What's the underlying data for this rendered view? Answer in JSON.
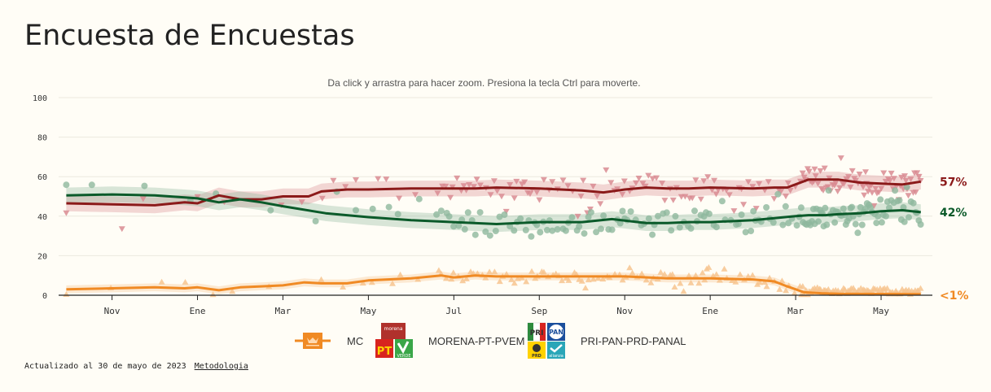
{
  "header": {
    "title": "Encuesta de Encuestas",
    "hint": "Da click y arrastra para hacer zoom. Presiona la tecla Ctrl para moverte."
  },
  "footer": {
    "updated": "Actualizado al 30 de mayo de 2023",
    "methodology_link": "Metodologia"
  },
  "legend": [
    {
      "label": "MC",
      "icon": "mc-logo-icon",
      "color": "#f08a24"
    },
    {
      "label": "MORENA-PT-PVEM",
      "icon": "morena-pt-pvem-logos-icon",
      "color": "#8b1a1a"
    },
    {
      "label": "PRI-PAN-PRD-PANAL",
      "icon": "pri-pan-prd-panal-logos-icon",
      "color": "#0b5a2a"
    }
  ],
  "chart_data": {
    "type": "line",
    "title": "Encuesta de Encuestas",
    "xlabel": "",
    "ylabel": "",
    "ylim": [
      0,
      100
    ],
    "yticks": [
      0,
      20,
      40,
      60,
      80,
      100
    ],
    "x_unit": "months since Nov 2021 (0 = Nov, 2 = Ene, ...)",
    "xlim": [
      -1.25,
      19.2
    ],
    "xticks": [
      {
        "value": 0,
        "label": "Nov"
      },
      {
        "value": 2,
        "label": "Ene"
      },
      {
        "value": 4,
        "label": "Mar"
      },
      {
        "value": 6,
        "label": "May"
      },
      {
        "value": 8,
        "label": "Jul"
      },
      {
        "value": 10,
        "label": "Sep"
      },
      {
        "value": 12,
        "label": "Nov"
      },
      {
        "value": 14,
        "label": "Ene"
      },
      {
        "value": 16,
        "label": "Mar"
      },
      {
        "value": 18,
        "label": "May"
      }
    ],
    "grid": true,
    "series": [
      {
        "name": "MORENA-PT-PVEM",
        "color": "#8b1a1a",
        "point_color": "#d98b92",
        "marker": "triangle-down",
        "end_label": "57%",
        "band": 4,
        "x": [
          -1.07,
          0,
          1,
          1.7,
          2,
          2.5,
          3,
          3.5,
          4,
          4.6,
          4.9,
          5.5,
          6,
          7,
          8,
          8.5,
          9,
          10,
          11,
          11.5,
          12,
          12.5,
          13,
          13.5,
          14,
          15,
          15.5,
          15.8,
          16.3,
          16.7,
          17,
          17.5,
          18,
          18.5,
          18.93
        ],
        "y": [
          46.5,
          46,
          45.5,
          47,
          46.5,
          50.5,
          48.5,
          48.5,
          50,
          50,
          52.5,
          53.5,
          53.5,
          54,
          54,
          54,
          54.5,
          54,
          53,
          52,
          53.5,
          54.5,
          54,
          54,
          54.5,
          54,
          54.5,
          54.5,
          58.5,
          58.5,
          58.5,
          57,
          56.5,
          56,
          57.5
        ]
      },
      {
        "name": "PRI-PAN-PRD-PANAL",
        "color": "#0b5a2a",
        "point_color": "#8fb89e",
        "marker": "circle",
        "end_label": "42%",
        "band": 4,
        "x": [
          -1.07,
          0,
          1,
          1.7,
          2,
          2.5,
          3,
          3.5,
          4,
          5,
          6,
          7,
          8,
          9,
          10,
          11,
          11.7,
          12.5,
          13,
          13.5,
          14,
          15,
          16,
          16.3,
          16.7,
          17,
          17.5,
          18,
          18.5,
          18.93
        ],
        "y": [
          50.5,
          51,
          50.5,
          49.5,
          49,
          47,
          48.5,
          47,
          45,
          41.5,
          39.5,
          38,
          37,
          36,
          37,
          37,
          38.5,
          36.5,
          36.5,
          37,
          37,
          38,
          40,
          40.5,
          40.5,
          41,
          41.5,
          42.5,
          43,
          42
        ]
      },
      {
        "name": "MC",
        "color": "#f08a24",
        "point_color": "#f7c48f",
        "marker": "triangle-up",
        "end_label": "<1%",
        "band": 2,
        "x": [
          -1.07,
          0,
          1,
          1.7,
          2,
          2.5,
          3,
          3.5,
          4,
          4.5,
          4.9,
          5.5,
          6,
          7,
          7.7,
          8,
          8.5,
          9,
          10,
          11,
          12,
          13,
          14,
          15,
          15.5,
          15.8,
          16.2,
          16.6,
          17,
          18,
          18.93
        ],
        "y": [
          3,
          3.5,
          4,
          3.5,
          4,
          2.5,
          4,
          4.5,
          5,
          6.5,
          6,
          6,
          7.5,
          8.5,
          10,
          9,
          10,
          9.5,
          9.5,
          9.5,
          9.5,
          8.5,
          8.5,
          8,
          7,
          4.5,
          1.5,
          1,
          0.7,
          0.6,
          0.5
        ]
      }
    ]
  }
}
